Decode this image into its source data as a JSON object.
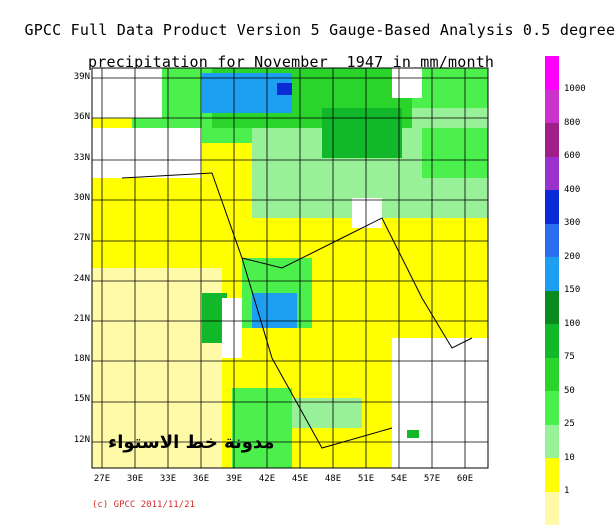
{
  "title": {
    "line1": "GPCC Full Data Product Version 5 Gauge-Based Analysis 0.5 degree",
    "line2": "precipitation for November  1947 in mm/month"
  },
  "lat_labels": [
    "39N",
    "36N",
    "33N",
    "30N",
    "27N",
    "24N",
    "21N",
    "18N",
    "15N",
    "12N"
  ],
  "lon_labels": [
    "27E",
    "30E",
    "33E",
    "36E",
    "39E",
    "42E",
    "45E",
    "48E",
    "51E",
    "54E",
    "57E",
    "60E"
  ],
  "legend": {
    "labels": [
      "1000",
      "800",
      "600",
      "400",
      "300",
      "200",
      "150",
      "100",
      "75",
      "50",
      "25",
      "10",
      "1"
    ],
    "colors": [
      "#ff00ff",
      "#cc33cc",
      "#a0208a",
      "#9932cc",
      "#0a2bd6",
      "#2b6ff0",
      "#1e9ef0",
      "#0a8a1e",
      "#10b82a",
      "#2ad42a",
      "#4cf04c",
      "#98f098",
      "#ffff00",
      "#fffaa8"
    ]
  },
  "copyright": "(c) GPCC 2011/11/21",
  "watermark": "مدونة خط الاستواء"
}
